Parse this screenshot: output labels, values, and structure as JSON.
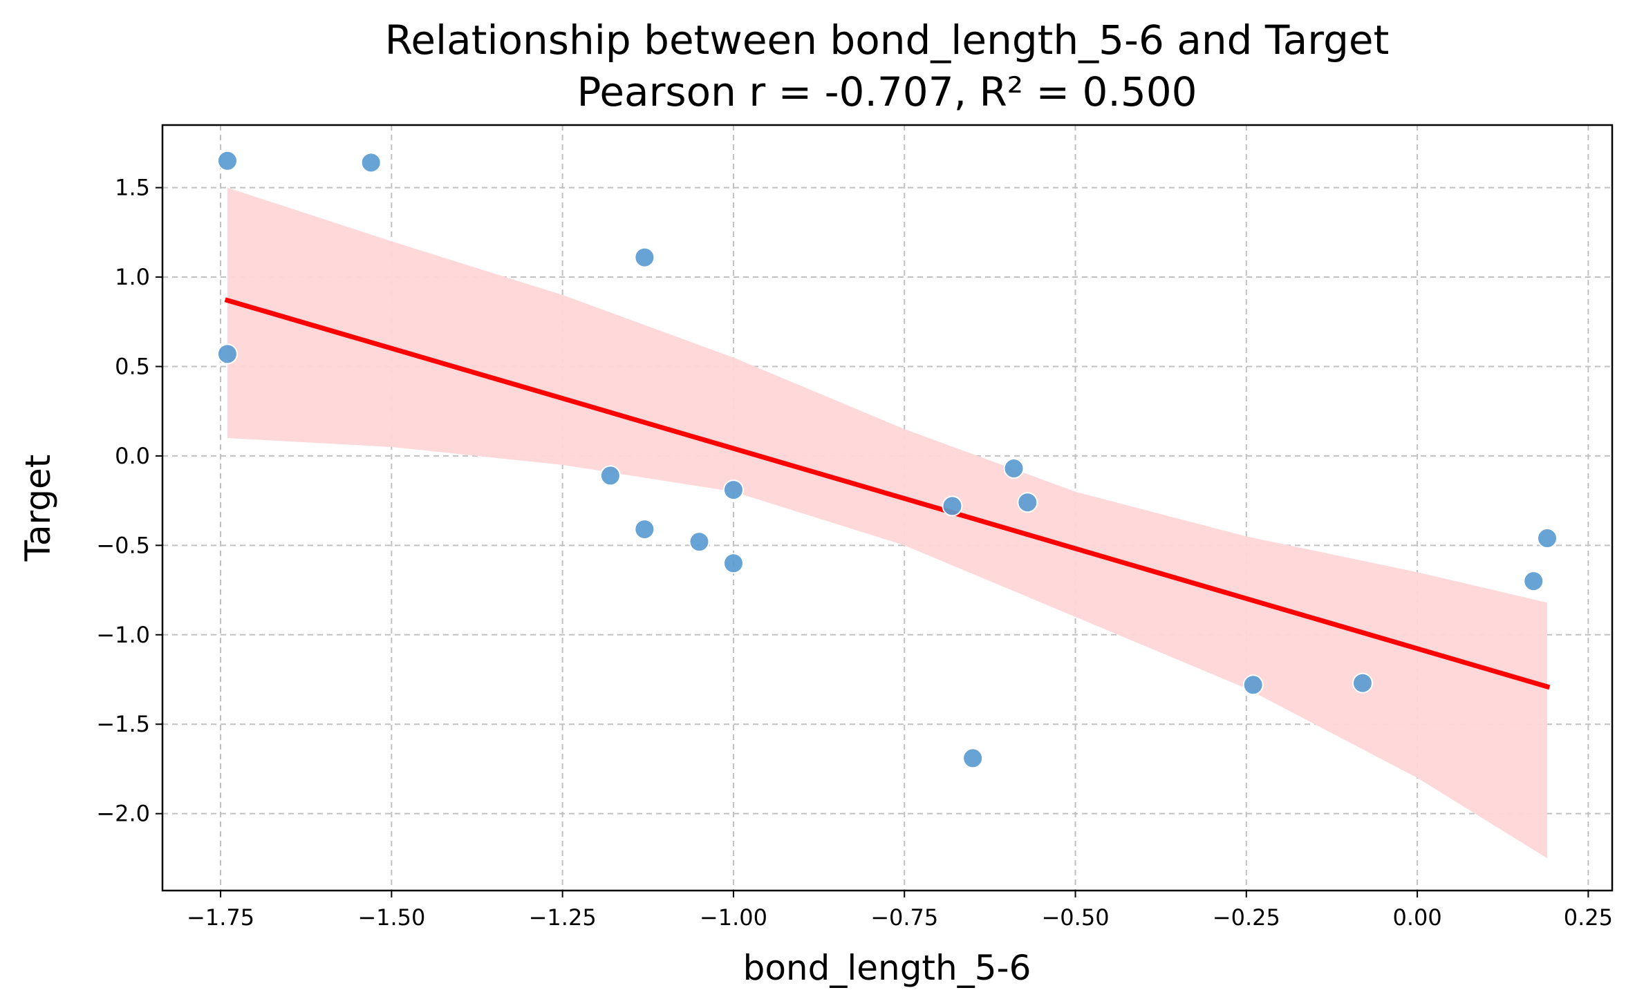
{
  "chart_data": {
    "type": "scatter",
    "title": "Relationship between bond_length_5-6 and Target",
    "subtitle": "Pearson r = -0.707, R² = 0.500",
    "xlabel": "bond_length_5-6",
    "ylabel": "Target",
    "xlim": [
      -1.835,
      0.285
    ],
    "ylim": [
      -2.43,
      1.85
    ],
    "xticks": [
      -1.75,
      -1.5,
      -1.25,
      -1.0,
      -0.75,
      -0.5,
      -0.25,
      0.0,
      0.25
    ],
    "xtick_labels": [
      "−1.75",
      "−1.50",
      "−1.25",
      "−1.00",
      "−0.75",
      "−0.50",
      "−0.25",
      "0.00",
      "0.25"
    ],
    "yticks": [
      1.5,
      1.0,
      0.5,
      0.0,
      -0.5,
      -1.0,
      -1.5,
      -2.0
    ],
    "ytick_labels": [
      "1.5",
      "1.0",
      "0.5",
      "0.0",
      "−0.5",
      "−1.0",
      "−1.5",
      "−2.0"
    ],
    "grid": true,
    "colors": {
      "points": "#5a9bd0",
      "fit_line": "#ff0000",
      "confidence_band": "#ffd6d8",
      "grid": "#c0c0c0"
    },
    "points": [
      {
        "x": -1.74,
        "y": 1.65
      },
      {
        "x": -1.53,
        "y": 1.64
      },
      {
        "x": -1.74,
        "y": 0.57
      },
      {
        "x": -1.13,
        "y": 1.11
      },
      {
        "x": -1.18,
        "y": -0.11
      },
      {
        "x": -1.13,
        "y": -0.41
      },
      {
        "x": -1.05,
        "y": -0.48
      },
      {
        "x": -1.0,
        "y": -0.19
      },
      {
        "x": -1.0,
        "y": -0.6
      },
      {
        "x": -0.68,
        "y": -0.28
      },
      {
        "x": -0.65,
        "y": -1.69
      },
      {
        "x": -0.59,
        "y": -0.07
      },
      {
        "x": -0.57,
        "y": -0.26
      },
      {
        "x": -0.24,
        "y": -1.28
      },
      {
        "x": -0.08,
        "y": -1.27
      },
      {
        "x": 0.17,
        "y": -0.7
      },
      {
        "x": 0.19,
        "y": -0.46
      }
    ],
    "fit_line": {
      "x": [
        -1.74,
        0.19
      ],
      "y": [
        0.87,
        -1.29
      ]
    },
    "confidence_band": {
      "x": [
        -1.74,
        -1.5,
        -1.25,
        -1.0,
        -0.75,
        -0.5,
        -0.25,
        0.0,
        0.19
      ],
      "upper": [
        1.5,
        1.2,
        0.9,
        0.55,
        0.15,
        -0.2,
        -0.45,
        -0.65,
        -0.82
      ],
      "lower": [
        0.1,
        0.05,
        -0.05,
        -0.2,
        -0.5,
        -0.9,
        -1.3,
        -1.8,
        -2.25
      ]
    }
  }
}
